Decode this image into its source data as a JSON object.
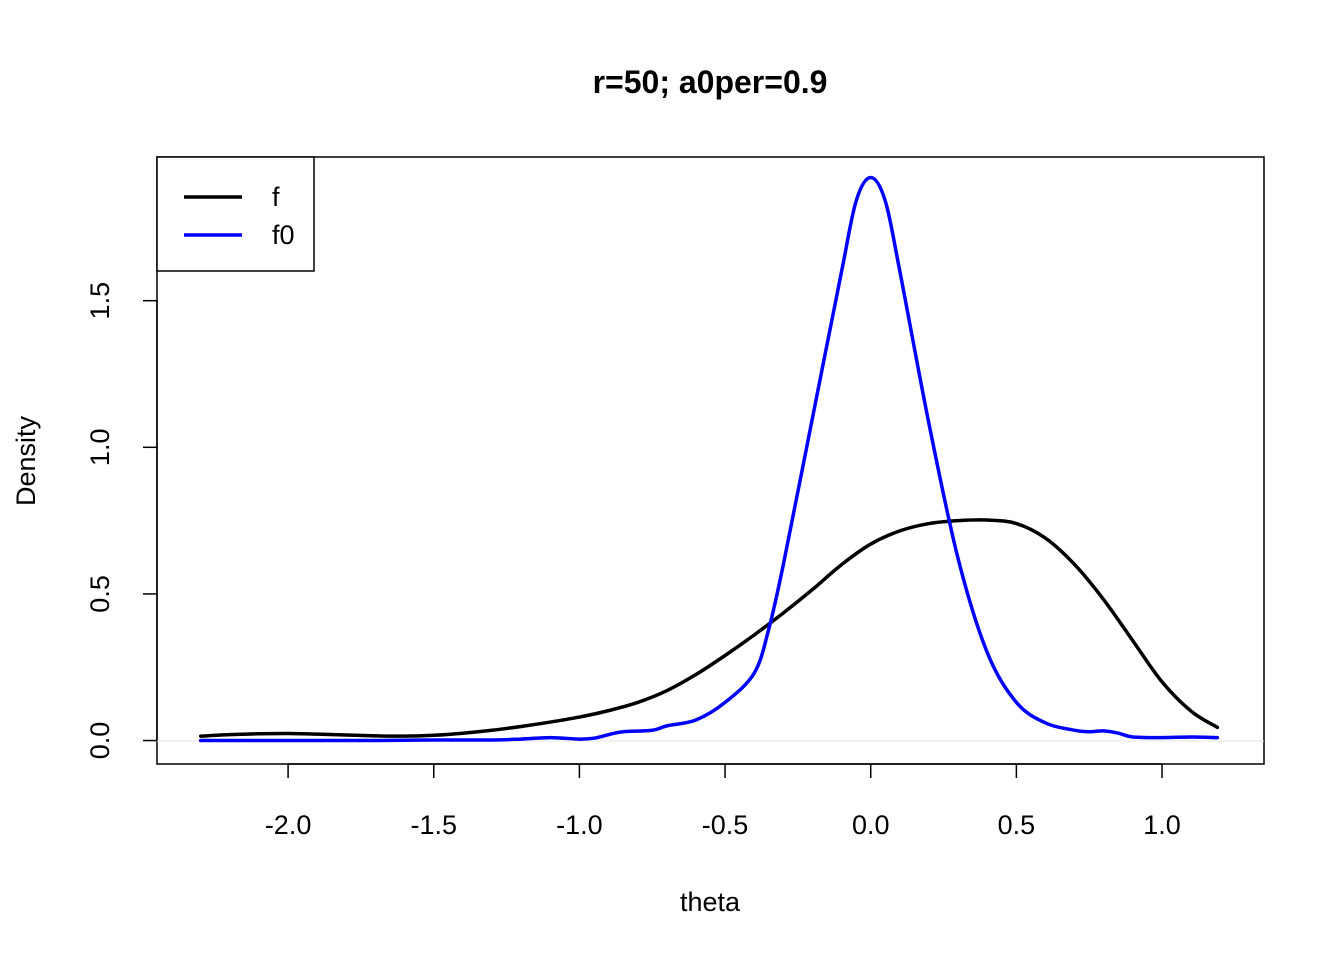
{
  "chart_data": {
    "type": "line",
    "title": "r=50; a0per=0.9",
    "xlabel": "theta",
    "ylabel": "Density",
    "xlim": [
      -2.45,
      1.35
    ],
    "ylim": [
      -0.08,
      1.99
    ],
    "xticks": [
      -2.0,
      -1.5,
      -1.0,
      -0.5,
      0.0,
      0.5,
      1.0
    ],
    "xtick_labels": [
      "-2.0",
      "-1.5",
      "-1.0",
      "-0.5",
      "0.0",
      "0.5",
      "1.0"
    ],
    "yticks": [
      0.0,
      0.5,
      1.0,
      1.5
    ],
    "ytick_labels": [
      "0.0",
      "0.5",
      "1.0",
      "1.5"
    ],
    "grid": false,
    "legend_position": "top-left",
    "series": [
      {
        "name": "f",
        "color": "#000000",
        "x": [
          -2.3,
          -2.2,
          -2.1,
          -2.0,
          -1.9,
          -1.8,
          -1.7,
          -1.6,
          -1.5,
          -1.4,
          -1.3,
          -1.2,
          -1.1,
          -1.0,
          -0.9,
          -0.8,
          -0.7,
          -0.6,
          -0.5,
          -0.4,
          -0.3,
          -0.2,
          -0.1,
          0.0,
          0.1,
          0.2,
          0.3,
          0.4,
          0.5,
          0.6,
          0.7,
          0.8,
          0.9,
          1.0,
          1.1,
          1.19
        ],
        "y": [
          0.015,
          0.02,
          0.023,
          0.024,
          0.022,
          0.019,
          0.016,
          0.015,
          0.018,
          0.025,
          0.035,
          0.048,
          0.063,
          0.08,
          0.102,
          0.13,
          0.17,
          0.225,
          0.29,
          0.36,
          0.435,
          0.515,
          0.6,
          0.67,
          0.715,
          0.74,
          0.75,
          0.752,
          0.74,
          0.69,
          0.6,
          0.48,
          0.34,
          0.2,
          0.1,
          0.045
        ]
      },
      {
        "name": "f0",
        "color": "#0000ff",
        "x": [
          -2.3,
          -2.0,
          -1.7,
          -1.5,
          -1.3,
          -1.2,
          -1.1,
          -1.0,
          -0.95,
          -0.9,
          -0.85,
          -0.75,
          -0.7,
          -0.6,
          -0.5,
          -0.4,
          -0.35,
          -0.3,
          -0.2,
          -0.1,
          -0.05,
          0.0,
          0.05,
          0.1,
          0.2,
          0.3,
          0.4,
          0.5,
          0.6,
          0.7,
          0.75,
          0.8,
          0.85,
          0.9,
          1.0,
          1.1,
          1.19
        ],
        "y": [
          0.0,
          0.0,
          0.0,
          0.002,
          0.002,
          0.005,
          0.01,
          0.005,
          0.008,
          0.02,
          0.03,
          0.035,
          0.05,
          0.07,
          0.13,
          0.23,
          0.38,
          0.6,
          1.1,
          1.6,
          1.84,
          1.92,
          1.84,
          1.6,
          1.08,
          0.62,
          0.3,
          0.13,
          0.06,
          0.035,
          0.03,
          0.033,
          0.025,
          0.012,
          0.01,
          0.012,
          0.01
        ]
      }
    ]
  }
}
